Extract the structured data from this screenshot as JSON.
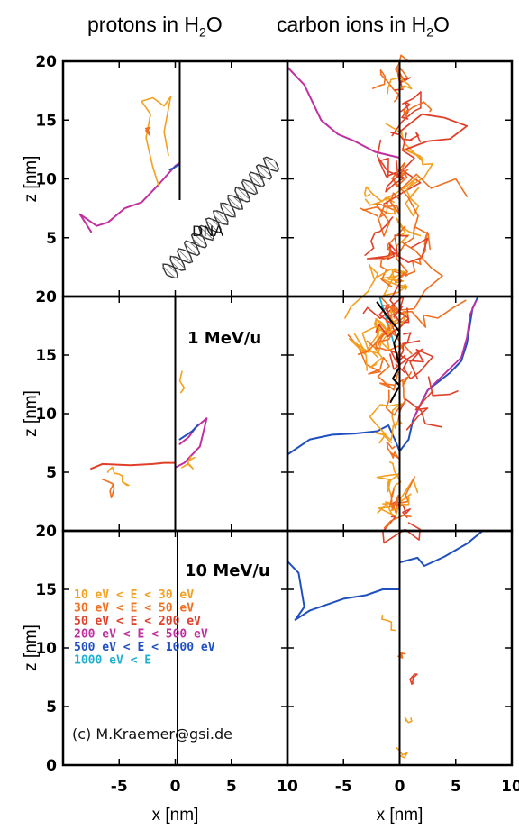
{
  "headers": {
    "protons": {
      "text": "protons in H",
      "sub": "2",
      "tail": "O"
    },
    "carbon": {
      "text": "carbon ions in H",
      "sub": "2",
      "tail": "O"
    }
  },
  "chart_data": {
    "type": "scatter",
    "xlim": [
      -10,
      10
    ],
    "ylim": [
      0,
      20
    ],
    "x_ticks": [
      -5,
      0,
      5,
      10
    ],
    "x_tick_labels": [
      "-5",
      "0",
      "5",
      "10"
    ],
    "y_ticks": [
      0,
      5,
      10,
      15,
      20
    ],
    "xlabel": "x [nm]",
    "ylabel": "z [nm]",
    "energy_labels": [
      "1 MeV/u",
      "10 MeV/u"
    ],
    "dna_label": "DNA",
    "credit": "(c) M.Kraemer@gsi.de",
    "legend": [
      {
        "text": "10  eV  <  E  <   30  eV",
        "color": "#f4a020"
      },
      {
        "text": "30  eV  <  E  <   50  eV",
        "color": "#f07020"
      },
      {
        "text": "50  eV  <  E  <  200  eV",
        "color": "#e0402a"
      },
      {
        "text": "200  eV  <  E  <  500  eV",
        "color": "#c030a0"
      },
      {
        "text": "500  eV  <  E  <  1000  eV",
        "color": "#2050c0"
      },
      {
        "text": "1000  eV  <  E",
        "color": "#20b0d0"
      }
    ],
    "colors": {
      "c10": "#f4a020",
      "c30": "#f07020",
      "c50": "#e0402a",
      "c200": "#c030a0",
      "c500": "#2050c0",
      "c1000": "#20b0d0",
      "primary": "#000000"
    }
  }
}
